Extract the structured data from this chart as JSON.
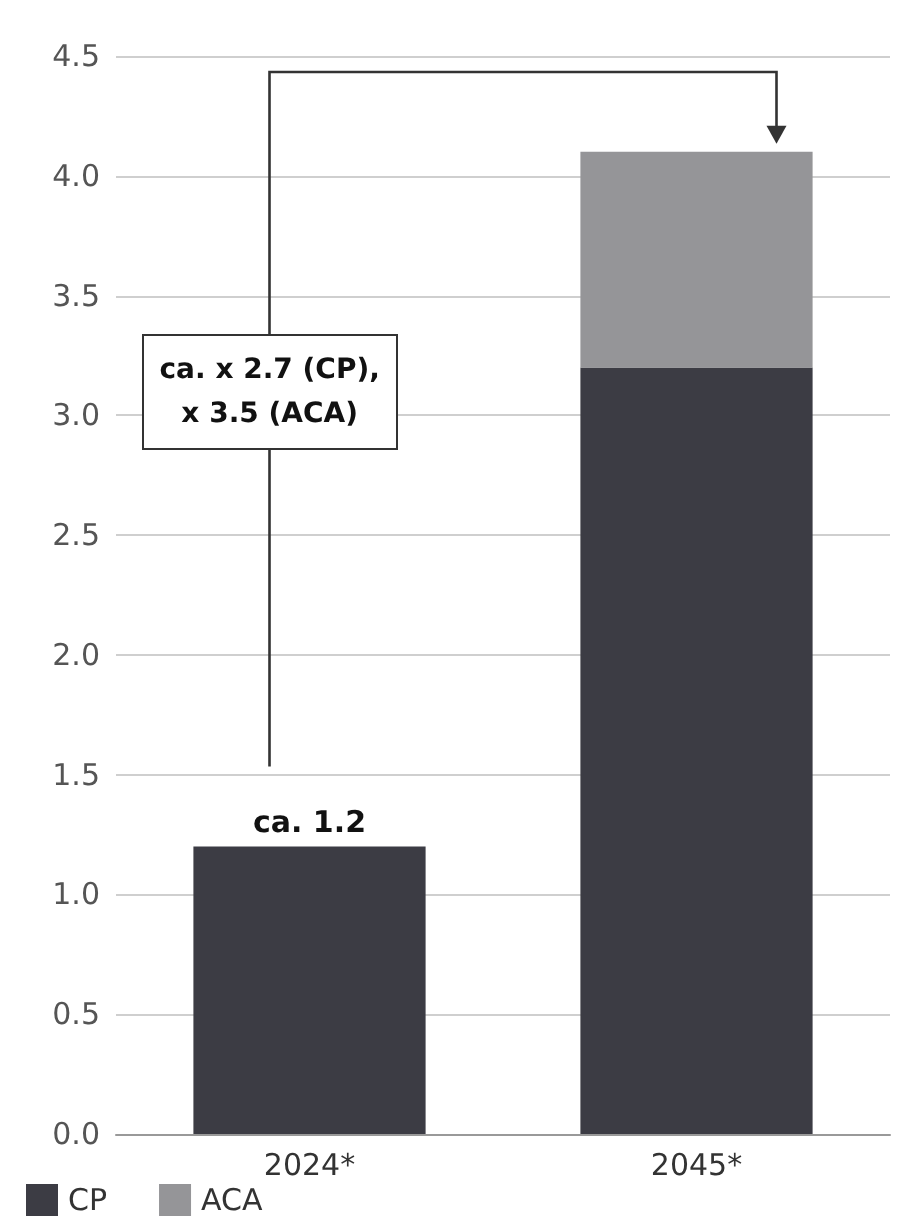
{
  "chart_data": {
    "type": "bar",
    "stacked": true,
    "categories": [
      "2024*",
      "2045*"
    ],
    "series": [
      {
        "name": "CP",
        "color": "#3c3c44",
        "values": [
          1.2,
          3.2
        ],
        "value_labels": [
          "ca. 1.2",
          null
        ]
      },
      {
        "name": "ACA",
        "color": "#959598",
        "values": [
          0,
          0.9
        ]
      }
    ],
    "ylim": [
      0,
      4.5
    ],
    "yticks": [
      {
        "value": 0,
        "label": "0.0"
      },
      0.5,
      {
        "value": 1,
        "label": "1.0"
      },
      1.5,
      {
        "value": 2,
        "label": "2.0"
      },
      2.5,
      {
        "value": 3,
        "label": "3.0"
      },
      3.5,
      {
        "value": 4,
        "label": "4.0"
      },
      4.5
    ],
    "grid": "y",
    "legend": "bottom left",
    "annotations": [
      "ca. x 2.7 (CP),\nx 3.5 (ACA)"
    ]
  }
}
